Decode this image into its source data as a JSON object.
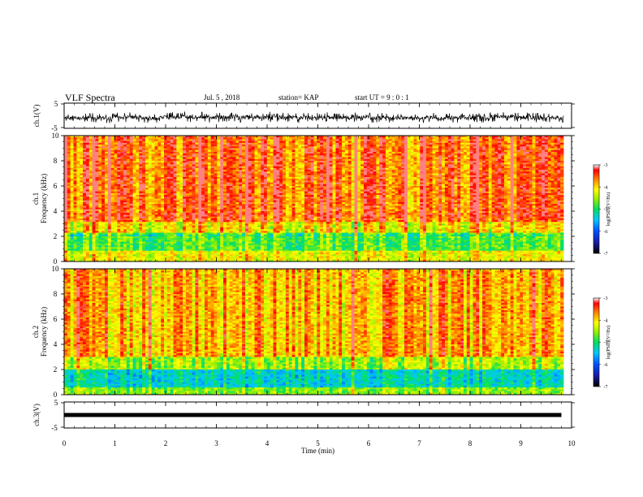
{
  "header": {
    "title": "VLF Spectra",
    "date": "Jul. 5 , 2018",
    "station": "station= KAP",
    "start": "start UT = 9 : 0 : 1"
  },
  "chart_data": [
    {
      "type": "line",
      "panel": "ch.1 waveform",
      "ylabel": "ch.1(V)",
      "ylim": [
        -5,
        5
      ],
      "yticks": [
        "5",
        "-5"
      ],
      "xlim": [
        0,
        10
      ],
      "color": "#000000"
    },
    {
      "type": "heatmap",
      "panel": "ch.1 spectrogram",
      "ylabel": "ch.1\nFrequency (kHz)",
      "ylabel_line1": "ch.1",
      "ylabel_line2": "Frequency (kHz)",
      "ylim": [
        0,
        10
      ],
      "yticks": [
        "0",
        "2",
        "4",
        "6",
        "8",
        "10"
      ],
      "xlim": [
        0,
        10
      ],
      "colorbar": {
        "label": "log(PSD)(V²/Hz)",
        "range": [
          -7,
          -3
        ],
        "ticks": [
          "-3",
          "-4",
          "-5",
          "-6",
          "-7"
        ]
      },
      "notes": "Mostly red/yellow above 3 kHz; green/cyan band 1-2 kHz; reddish line near 3.7 kHz"
    },
    {
      "type": "heatmap",
      "panel": "ch.2 spectrogram",
      "ylabel": "ch.2\nFrequency (kHz)",
      "ylabel_line1": "ch.2",
      "ylabel_line2": "Frequency (kHz)",
      "ylim": [
        0,
        10
      ],
      "yticks": [
        "0",
        "2",
        "4",
        "6",
        "8",
        "10"
      ],
      "xlim": [
        0,
        10
      ],
      "colorbar": {
        "label": "log(PSD)(V²/Hz)",
        "range": [
          -7,
          -3
        ],
        "ticks": [
          "-3",
          "-4",
          "-5",
          "-6",
          "-7"
        ]
      },
      "notes": "Yellow dominant with red vertical streaks; cyan/blue band 0.5-2 kHz"
    },
    {
      "type": "line",
      "panel": "ch.3 waveform",
      "ylabel": "ch.3(V)",
      "ylim": [
        -5,
        5
      ],
      "yticks": [
        "5",
        "-5"
      ],
      "xlim": [
        0,
        10
      ],
      "x": [
        0,
        9.8
      ],
      "y": [
        0,
        0
      ],
      "color": "#000000"
    }
  ],
  "xaxis": {
    "label": "Time (min)",
    "ticks": [
      "0",
      "1",
      "2",
      "3",
      "4",
      "5",
      "6",
      "7",
      "8",
      "9",
      "10"
    ]
  }
}
